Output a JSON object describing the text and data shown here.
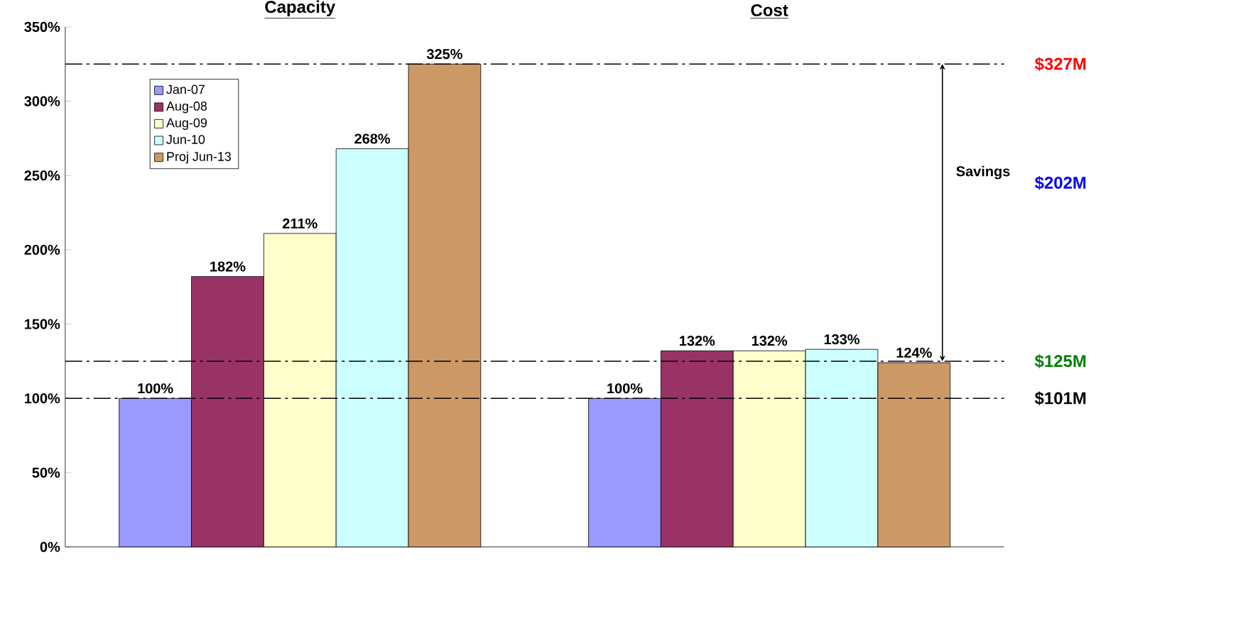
{
  "chart_data": {
    "type": "bar",
    "categories": [
      "Capacity",
      "Cost"
    ],
    "series": [
      {
        "name": "Jan-07",
        "color": "#9999ff",
        "values": [
          100,
          100
        ],
        "value_labels": [
          "100%",
          "100%"
        ]
      },
      {
        "name": "Aug-08",
        "color": "#993366",
        "values": [
          182,
          132
        ],
        "value_labels": [
          "182%",
          "132%"
        ]
      },
      {
        "name": "Aug-09",
        "color": "#ffffcc",
        "values": [
          211,
          132
        ],
        "value_labels": [
          "211%",
          "132%"
        ]
      },
      {
        "name": "Jun-10",
        "color": "#ccffff",
        "values": [
          268,
          133
        ],
        "value_labels": [
          "268%",
          "133%"
        ]
      },
      {
        "name": "Proj Jun-13",
        "color": "#cc9966",
        "values": [
          325,
          124
        ],
        "value_labels": [
          "325%",
          "124%"
        ]
      }
    ],
    "ylim": [
      0,
      350
    ],
    "yticks": [
      {
        "value": 0,
        "label": "0%"
      },
      {
        "value": 50,
        "label": "50%"
      },
      {
        "value": 100,
        "label": "100%"
      },
      {
        "value": 150,
        "label": "150%"
      },
      {
        "value": 200,
        "label": "200%"
      },
      {
        "value": 250,
        "label": "250%"
      },
      {
        "value": 300,
        "label": "300%"
      },
      {
        "value": 350,
        "label": "350%"
      }
    ],
    "ref_lines": [
      {
        "axis": "y",
        "value": 325,
        "label": "$327M",
        "line_style": "dashed"
      },
      {
        "axis": "y",
        "value": 125,
        "label": "$125M",
        "line_style": "dashed"
      },
      {
        "axis": "y",
        "value": 100,
        "label": "$101M",
        "line_style": "dashed"
      }
    ],
    "annotations": [
      "Savings",
      "$202M"
    ],
    "legend": "top left",
    "grid": false
  }
}
